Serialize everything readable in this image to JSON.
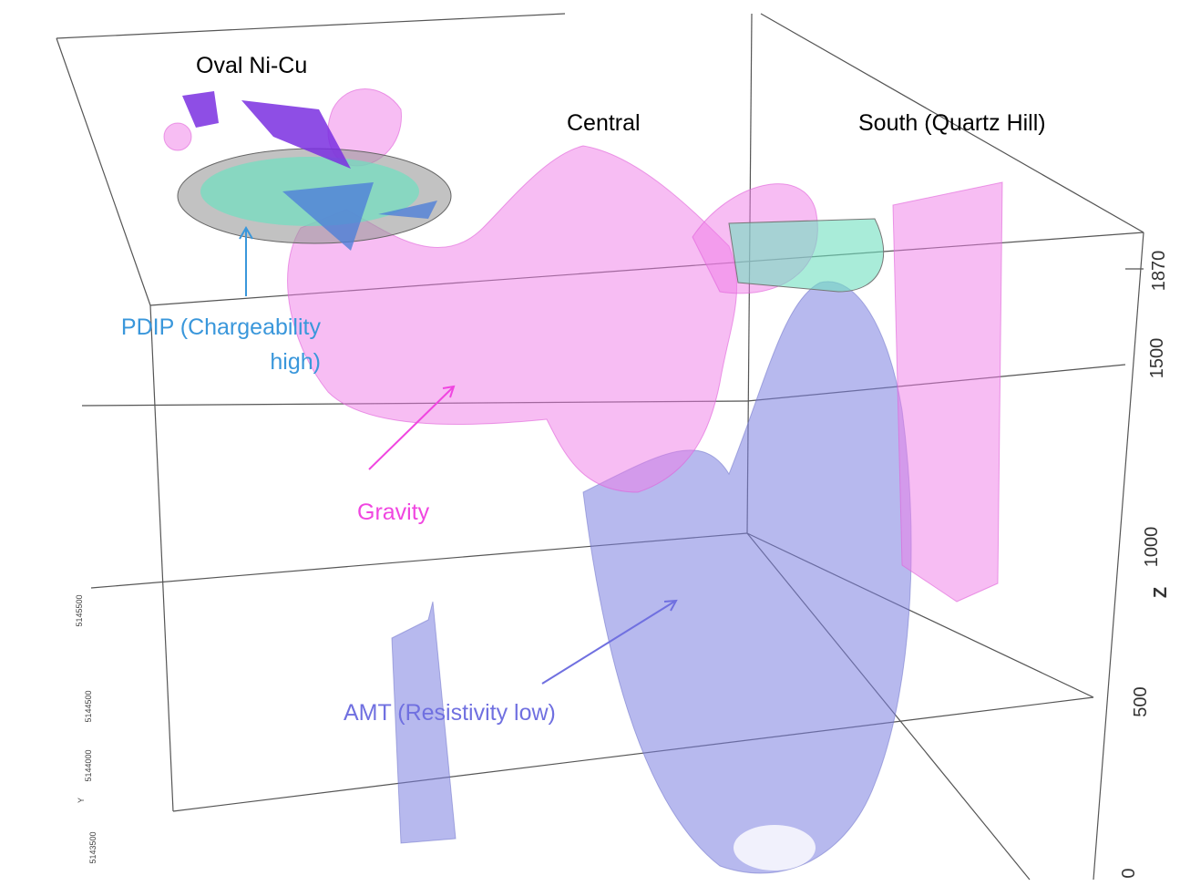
{
  "labels": {
    "oval": "Oval Ni-Cu",
    "central": "Central",
    "south": "South (Quartz Hill)",
    "pdip": [
      "PDIP (Chargeability",
      "high)"
    ],
    "gravity": "Gravity",
    "amt": "AMT (Resistivity low)"
  },
  "z_axis": {
    "label": "Z",
    "ticks": [
      "1870",
      "1500",
      "1000",
      "500",
      "0"
    ]
  },
  "y_axis": {
    "label": "Y",
    "ticks": [
      "5145500",
      "5144500",
      "5144000",
      "5143500"
    ]
  }
}
